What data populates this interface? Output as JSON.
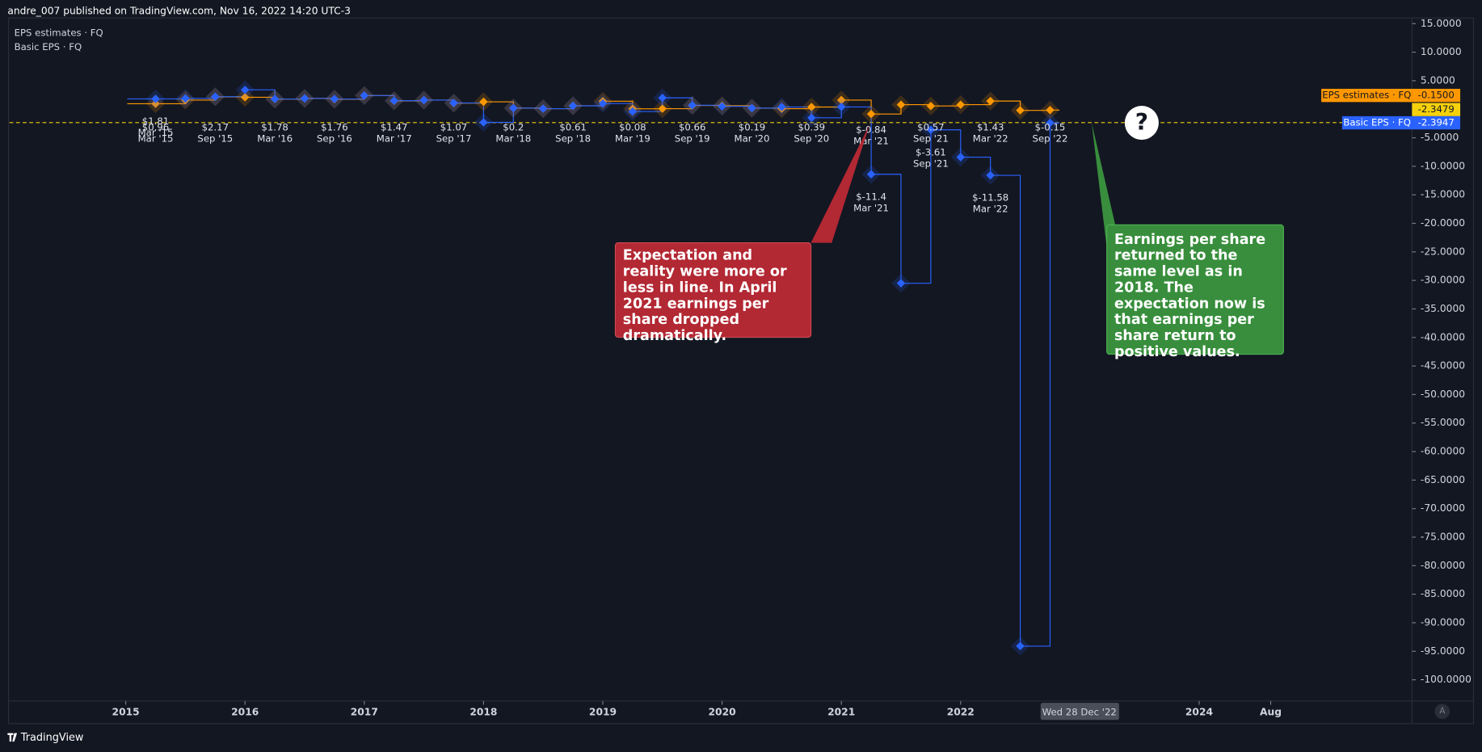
{
  "header": "andre_007 published on TradingView.com, Nov 16, 2022 14:20 UTC-3",
  "footer": "TradingView",
  "chart_data": {
    "type": "step",
    "legend": [
      "EPS estimates · FQ",
      "Basic EPS · FQ"
    ],
    "x": [
      2015.25,
      2015.5,
      2015.75,
      2016,
      2016.25,
      2016.5,
      2016.75,
      2017,
      2017.25,
      2017.5,
      2017.75,
      2018,
      2018.25,
      2018.5,
      2018.75,
      2019,
      2019.25,
      2019.5,
      2019.75,
      2020,
      2020.25,
      2020.5,
      2020.75,
      2021,
      2021.25,
      2021.5,
      2021.75,
      2022,
      2022.25,
      2022.5,
      2022.75
    ],
    "x_labels": [
      "Mar '15",
      null,
      "Sep '15",
      null,
      "Mar '16",
      null,
      "Sep '16",
      null,
      "Mar '17",
      null,
      "Sep '17",
      null,
      "Mar '18",
      null,
      "Sep '18",
      null,
      "Mar '19",
      null,
      "Sep '19",
      null,
      "Mar '20",
      null,
      "Sep '20",
      null,
      "Mar '21",
      null,
      "Sep '21",
      null,
      "Mar '22",
      null,
      "Sep '22"
    ],
    "series": [
      {
        "name": "EPS estimates · FQ",
        "color": "#ff9800",
        "last_label": "-0.1500",
        "values": [
          0.96,
          1.6,
          2.17,
          2.1,
          1.78,
          1.9,
          1.76,
          2.4,
          1.47,
          1.6,
          1.07,
          1.3,
          0.2,
          0.1,
          0.61,
          1.4,
          0.08,
          0.1,
          0.66,
          0.6,
          0.19,
          0.1,
          0.39,
          1.6,
          -0.84,
          0.8,
          0.57,
          0.8,
          1.43,
          -0.2,
          -0.15
        ],
        "value_labels": [
          "$0.96",
          null,
          "$2.17",
          null,
          "$1.78",
          null,
          "$1.76",
          null,
          "$1.47",
          null,
          "$1.07",
          null,
          "$0.2",
          null,
          "$0.61",
          null,
          "$0.08",
          null,
          "$0.66",
          null,
          "$0.19",
          null,
          "$0.39",
          null,
          "$-0.84",
          null,
          "$0.57",
          null,
          "$1.43",
          null,
          "$-0.15"
        ]
      },
      {
        "name": "Basic EPS · FQ",
        "color": "#2962ff",
        "last_label": "-2.3947",
        "values": [
          1.81,
          1.9,
          2.2,
          3.4,
          1.8,
          1.9,
          1.8,
          2.4,
          1.5,
          1.6,
          1.1,
          -2.3,
          0.2,
          0.1,
          0.6,
          1.0,
          -0.4,
          2.0,
          0.7,
          0.5,
          0.2,
          0.4,
          -1.5,
          0.4,
          -11.4,
          -30.5,
          -3.61,
          -8.4,
          -11.58,
          -94.1,
          -2.3947
        ],
        "value_labels": [
          "$1.81",
          null,
          null,
          null,
          null,
          null,
          null,
          null,
          null,
          null,
          null,
          null,
          null,
          null,
          null,
          null,
          null,
          null,
          null,
          null,
          null,
          null,
          null,
          null,
          "$-11.4",
          null,
          "$-3.61",
          null,
          "$-11.58",
          null,
          null
        ]
      }
    ],
    "price_line": {
      "value": -2.3479,
      "label": "-2.3479",
      "color": "#f5d10c"
    },
    "xlim": [
      2014.025,
      2025.785
    ],
    "xticks": [
      2015,
      2016,
      2017,
      2018,
      2019,
      2020,
      2021,
      2022,
      2024,
      {
        "value": 2024.6,
        "label": "Aug"
      }
    ],
    "crosshair_label": "Wed 28 Dec '22",
    "ylim": [
      -103.5,
      16
    ],
    "yticks": [
      {
        "value": 15,
        "label": "15.0000"
      },
      {
        "value": 10,
        "label": "10.0000"
      },
      {
        "value": 5,
        "label": "5.0000"
      },
      {
        "value": -5,
        "label": "-5.0000"
      },
      {
        "value": -10,
        "label": "-10.0000"
      },
      {
        "value": -15,
        "label": "-15.0000"
      },
      {
        "value": -20,
        "label": "-20.0000"
      },
      {
        "value": -25,
        "label": "-25.0000"
      },
      {
        "value": -30,
        "label": "-30.0000"
      },
      {
        "value": -35,
        "label": "-35.0000"
      },
      {
        "value": -40,
        "label": "-40.0000"
      },
      {
        "value": -45,
        "label": "-45.0000"
      },
      {
        "value": -50,
        "label": "-50.0000"
      },
      {
        "value": -55,
        "label": "-55.0000"
      },
      {
        "value": -60,
        "label": "-60.0000"
      },
      {
        "value": -65,
        "label": "-65.0000"
      },
      {
        "value": -70,
        "label": "-70.0000"
      },
      {
        "value": -75,
        "label": "-75.0000"
      },
      {
        "value": -80,
        "label": "-80.0000"
      },
      {
        "value": -85,
        "label": "-85.0000"
      },
      {
        "value": -90,
        "label": "-90.0000"
      },
      {
        "value": -95,
        "label": "-95.0000"
      },
      {
        "value": -100,
        "label": "-100.0000"
      }
    ],
    "grid": false,
    "annotations": [
      {
        "text": "Expectation and reality were more or less in line. In April 2021 earnings per share dropped dramatically.",
        "color": "#b22833"
      },
      {
        "text": "Earnings per share returned to the same level as in 2018. The expectation now is that earnings per share return to positive values.",
        "color": "#388e3c"
      },
      {
        "text": "?"
      }
    ],
    "scale_button": "A"
  }
}
